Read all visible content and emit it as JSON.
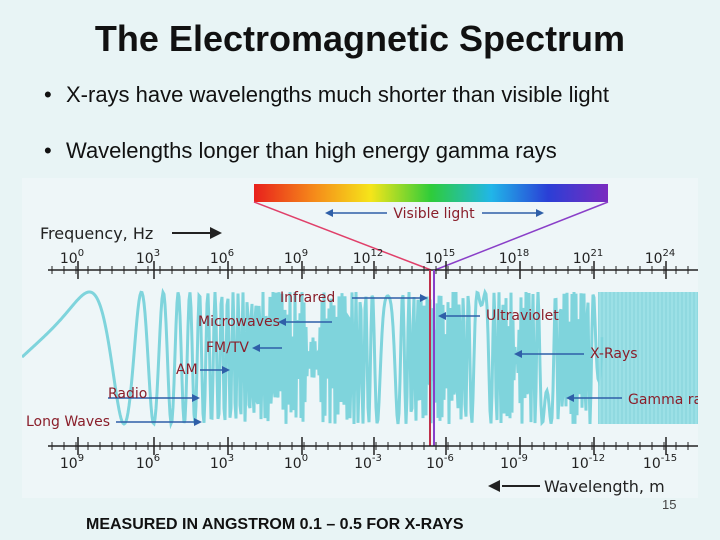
{
  "slide": {
    "title": "The Electromagnetic Spectrum",
    "bullets": [
      "X-rays have wavelengths much shorter than visible light",
      "Wavelengths longer than high energy gamma rays"
    ],
    "footer": "MEASURED IN  ANGSTROM  0.1 – 0.5 FOR X-RAYS",
    "slide_number": "15"
  },
  "diagram": {
    "visible_light_label": "Visible light",
    "frequency_label": "Frequency, Hz",
    "wavelength_label": "Wavelength, m",
    "frequency_ticks": [
      {
        "base": "10",
        "exp": "0"
      },
      {
        "base": "10",
        "exp": "3"
      },
      {
        "base": "10",
        "exp": "6"
      },
      {
        "base": "10",
        "exp": "9"
      },
      {
        "base": "10",
        "exp": "12"
      },
      {
        "base": "10",
        "exp": "15"
      },
      {
        "base": "10",
        "exp": "18"
      },
      {
        "base": "10",
        "exp": "21"
      },
      {
        "base": "10",
        "exp": "24"
      }
    ],
    "wavelength_ticks": [
      {
        "base": "10",
        "exp": "9"
      },
      {
        "base": "10",
        "exp": "6"
      },
      {
        "base": "10",
        "exp": "3"
      },
      {
        "base": "10",
        "exp": "0"
      },
      {
        "base": "10",
        "exp": "-3"
      },
      {
        "base": "10",
        "exp": "-6"
      },
      {
        "base": "10",
        "exp": "-9"
      },
      {
        "base": "10",
        "exp": "-12"
      },
      {
        "base": "10",
        "exp": "-15"
      }
    ],
    "bands": {
      "infrared": "Infrared",
      "microwaves": "Microwaves",
      "fmtv": "FM/TV",
      "am": "AM",
      "radio": "Radio",
      "longwaves": "Long Waves",
      "ultraviolet": "Ultraviolet",
      "xrays": "X-Rays",
      "gamma": "Gamma rays"
    },
    "colors": {
      "wave": "#7fd4dc",
      "label": "#8a1f2b",
      "arrow": "#2f5fa8",
      "axis": "#222222",
      "visible_line": "#c0304a",
      "cone_left": "#e0406a",
      "cone_right": "#8a3fc8"
    }
  }
}
